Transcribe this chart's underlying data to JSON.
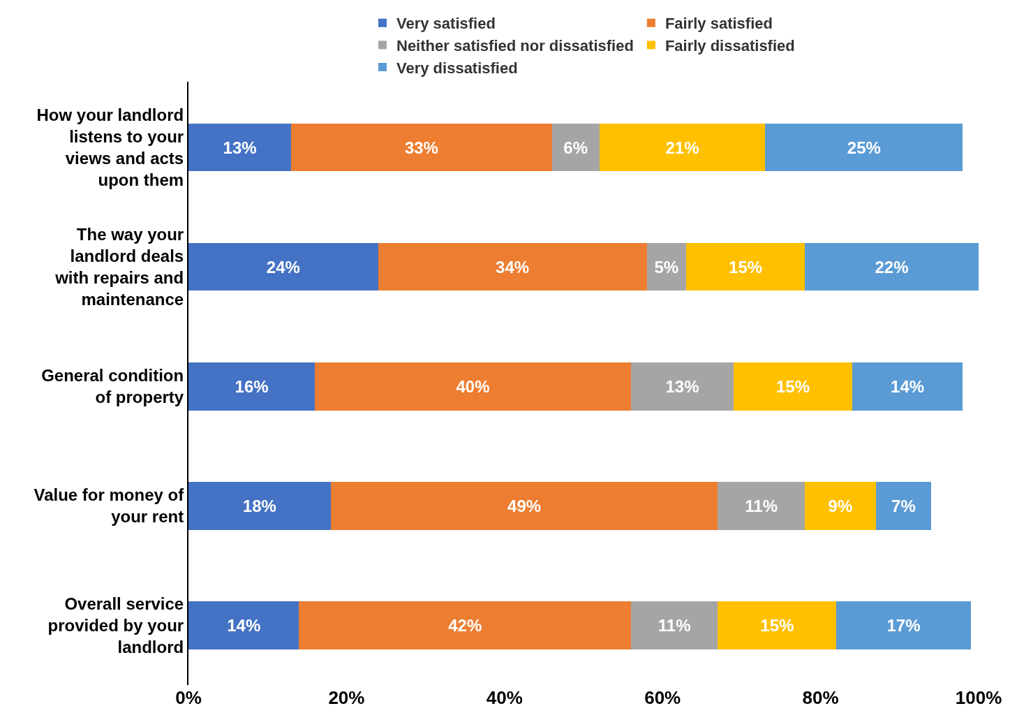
{
  "chart_data": {
    "type": "bar",
    "orientation": "horizontal",
    "stacked": true,
    "categories": [
      "How your landlord listens to your views and acts upon them",
      "The way your landlord deals with repairs and maintenance",
      "General condition of property",
      "Value for money of your rent",
      "Overall service provided by your landlord"
    ],
    "series": [
      {
        "name": "Very satisfied",
        "color": "#4472c4",
        "values": [
          13,
          24,
          16,
          18,
          14
        ],
        "value_labels": [
          "13%",
          "24%",
          "16%",
          "18%",
          "14%"
        ]
      },
      {
        "name": "Fairly satisfied",
        "color": "#ed7d31",
        "values": [
          33,
          34,
          40,
          49,
          42
        ],
        "value_labels": [
          "33%",
          "34%",
          "40%",
          "49%",
          "42%"
        ]
      },
      {
        "name": "Neither satisfied nor dissatisfied",
        "color": "#a5a5a5",
        "values": [
          6,
          5,
          13,
          11,
          11
        ],
        "value_labels": [
          "6%",
          "5%",
          "13%",
          "11%",
          "11%"
        ]
      },
      {
        "name": "Fairly dissatisfied",
        "color": "#ffc000",
        "values": [
          21,
          15,
          15,
          9,
          15
        ],
        "value_labels": [
          "21%",
          "15%",
          "15%",
          "9%",
          "15%"
        ]
      },
      {
        "name": "Very dissatisfied",
        "color": "#5b9bd5",
        "values": [
          25,
          22,
          14,
          7,
          17
        ],
        "value_labels": [
          "25%",
          "22%",
          "14%",
          "7%",
          "17%"
        ]
      }
    ],
    "xlim": [
      0,
      100
    ],
    "xticks": [
      {
        "value": 0,
        "label": "0%"
      },
      {
        "value": 20,
        "label": "20%"
      },
      {
        "value": 40,
        "label": "40%"
      },
      {
        "value": 60,
        "label": "60%"
      },
      {
        "value": 80,
        "label": "80%"
      },
      {
        "value": 100,
        "label": "100%"
      }
    ],
    "grid": false,
    "legend": "top"
  }
}
